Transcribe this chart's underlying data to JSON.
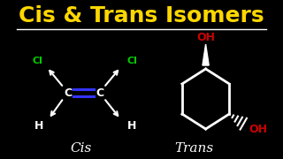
{
  "title": "Cis & Trans Isomers",
  "title_color": "#FFD700",
  "title_fontsize": 18,
  "bg_color": "#000000",
  "line_color": "#FFFFFF",
  "cl_color": "#00CC00",
  "oh_color": "#CC0000",
  "double_bond_color": "#3333FF",
  "label_cis": "Cis",
  "label_trans": "Trans",
  "label_color": "#FFFFFF",
  "label_fontsize": 11
}
